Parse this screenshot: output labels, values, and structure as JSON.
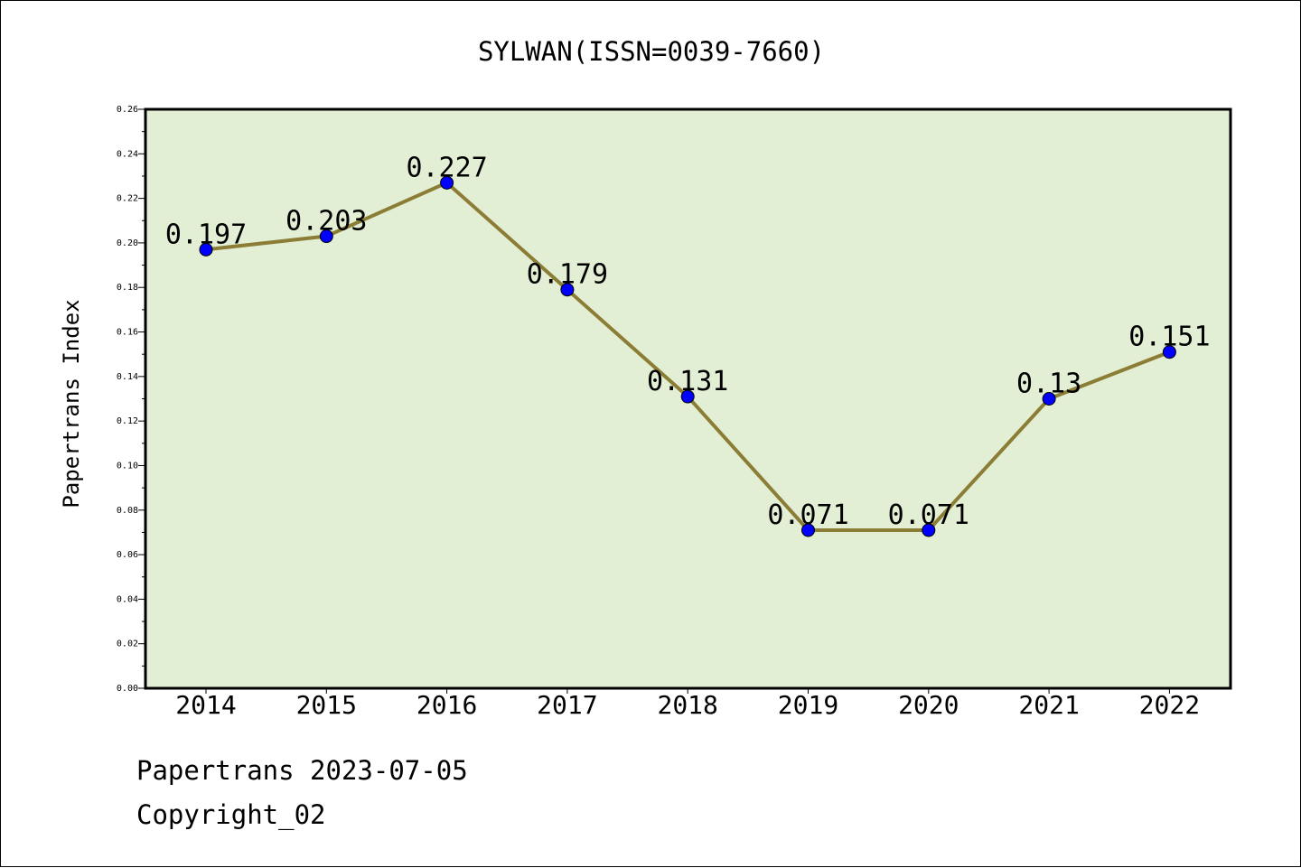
{
  "chart_data": {
    "type": "line",
    "title": "SYLWAN(ISSN=0039-7660)",
    "xlabel": "",
    "ylabel": "Papertrans Index",
    "categories": [
      "2014",
      "2015",
      "2016",
      "2017",
      "2018",
      "2019",
      "2020",
      "2021",
      "2022"
    ],
    "values": [
      0.197,
      0.203,
      0.227,
      0.179,
      0.131,
      0.071,
      0.071,
      0.13,
      0.151
    ],
    "data_labels": [
      "0.197",
      "0.203",
      "0.227",
      "0.179",
      "0.131",
      "0.071",
      "0.071",
      "0.13",
      "0.151"
    ],
    "ylim": [
      0,
      0.26
    ],
    "yticks": [
      "0.00",
      "0.02",
      "0.04",
      "0.06",
      "0.08",
      "0.10",
      "0.12",
      "0.14",
      "0.16",
      "0.18",
      "0.20",
      "0.22",
      "0.24",
      "0.26"
    ],
    "grid": false,
    "legend": "none",
    "colors": {
      "plot_background": "#e2efd4",
      "line": "#8b7d35",
      "marker": "#0000ff",
      "axes": "#000000"
    }
  },
  "footer": {
    "source": "Papertrans 2023-07-05",
    "copyright": "Copyright_02"
  }
}
